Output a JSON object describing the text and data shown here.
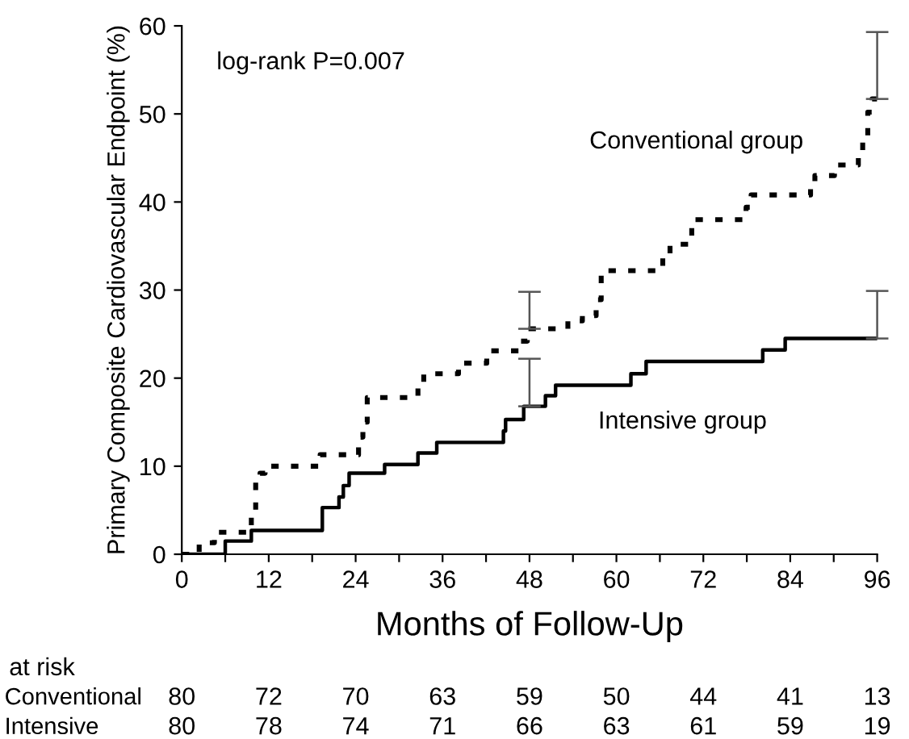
{
  "chart_data": {
    "type": "step",
    "xlabel": "Months of Follow-Up",
    "ylabel": "Primary Composite Cardiovascular Endpoint (%)",
    "xlim": [
      0,
      96
    ],
    "ylim": [
      0,
      60
    ],
    "xticks": [
      0,
      {
        "value": 6,
        "label": null
      },
      12,
      {
        "value": 18,
        "label": null
      },
      24,
      {
        "value": 30,
        "label": null
      },
      36,
      {
        "value": 42,
        "label": null
      },
      48,
      {
        "value": 54,
        "label": null
      },
      60,
      {
        "value": 66,
        "label": null
      },
      72,
      {
        "value": 78,
        "label": null
      },
      84,
      {
        "value": 90,
        "label": null
      },
      96
    ],
    "yticks": [
      0,
      10,
      20,
      30,
      40,
      50,
      60
    ],
    "grid": false,
    "legend": false,
    "marker": "none",
    "series": [
      {
        "name": "Conventional group",
        "color": "#000000",
        "line_style": "dotted",
        "x": [
          0,
          2.4,
          4.5,
          9.6,
          10.2,
          10.8,
          11.5,
          19.1,
          24.4,
          25,
          25.6,
          32.6,
          33.4,
          38.2,
          42.1,
          46.7,
          47.7,
          48,
          53.3,
          55.3,
          57.2,
          57.9,
          66.4,
          67.4,
          70.4,
          77.9,
          78.6,
          86.8,
          87.4,
          90.1,
          93.4,
          94,
          94.7,
          95.3,
          96
        ],
        "values": [
          0,
          1.3,
          2.5,
          5,
          8.3,
          9.2,
          10,
          11.3,
          13.3,
          15,
          17.8,
          19.3,
          20.5,
          21.7,
          23.1,
          24.2,
          25.6,
          25.6,
          26.5,
          27.1,
          28.9,
          32.2,
          33.7,
          35.2,
          38,
          39.4,
          40.8,
          41.8,
          43,
          44.2,
          45.4,
          47.2,
          50.2,
          51.7,
          51.7
        ],
        "errors": [
          null,
          null,
          null,
          null,
          null,
          null,
          null,
          null,
          null,
          null,
          null,
          null,
          null,
          null,
          null,
          null,
          null,
          [
            25.6,
            29.8
          ],
          null,
          null,
          null,
          null,
          null,
          null,
          null,
          null,
          null,
          null,
          null,
          null,
          null,
          null,
          null,
          null,
          [
            51.7,
            59.3
          ]
        ]
      },
      {
        "name": "Intensive group",
        "color": "#000000",
        "line_style": "solid",
        "x": [
          0,
          6,
          9.6,
          19.4,
          21.7,
          22.3,
          23.1,
          28,
          32.6,
          35.2,
          44.4,
          44.7,
          47.2,
          48,
          50.2,
          51.6,
          62,
          64.1,
          80.2,
          83.3,
          96
        ],
        "values": [
          0,
          1.5,
          2.7,
          5.3,
          6.5,
          7.8,
          9.2,
          10.2,
          11.5,
          12.7,
          14,
          15.3,
          16.8,
          16.8,
          18,
          19.2,
          20.5,
          21.9,
          23.2,
          24.5,
          24.5
        ],
        "errors": [
          null,
          null,
          null,
          null,
          null,
          null,
          null,
          null,
          null,
          null,
          null,
          null,
          null,
          [
            16.8,
            22.2
          ],
          null,
          null,
          null,
          null,
          null,
          null,
          [
            24.5,
            29.9
          ]
        ]
      }
    ],
    "annotations": [
      "log-rank P=0.007",
      "at risk",
      "Conventional",
      "80",
      "72",
      "70",
      "63",
      "59",
      "50",
      "44",
      "41",
      "13",
      "Intensive",
      "80",
      "78",
      "74",
      "71",
      "66",
      "63",
      "61",
      "59",
      "19"
    ]
  }
}
